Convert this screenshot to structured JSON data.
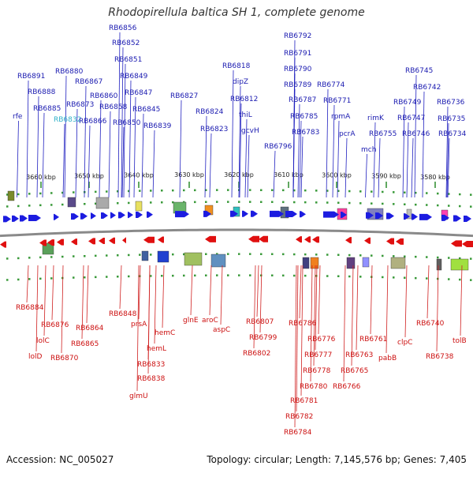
{
  "title": "Rhodopirellula baltica SH 1, complete genome",
  "footer": {
    "accession": "Accession: NC_005027",
    "summary": "Topology: circular; Length: 7,145,576 bp; Genes: 7,405"
  },
  "ticks": [
    "3660 kbp",
    "3650 kbp",
    "3640 kbp",
    "3630 kbp",
    "3620 kbp",
    "3610 kbp",
    "3600 kbp",
    "3590 kbp",
    "3580 kbp"
  ],
  "top_labels": [
    "RB6856",
    "RB6852",
    "RB6851",
    "RB6849",
    "RB6847",
    "RB6845",
    "RB6839",
    "RB6880",
    "RB6867",
    "RB6891",
    "RB6888",
    "RB6873",
    "RB6860",
    "RB6885",
    "rfe",
    "RB6832",
    "RB6866",
    "RB6858",
    "RB6850",
    "RB6827",
    "RB6824",
    "RB6823",
    "RB6818",
    "dipZ",
    "RB6812",
    "thiL",
    "gcvH",
    "RB6792",
    "RB6791",
    "RB6790",
    "RB6789",
    "RB6787",
    "RB6785",
    "RB6783",
    "RB6796",
    "RB6774",
    "RB6771",
    "rpmA",
    "pcrA",
    "rimK",
    "mch",
    "RB6755",
    "RB6745",
    "RB6742",
    "RB6749",
    "RB6747",
    "RB6746",
    "RB6736",
    "RB6735",
    "RB6734"
  ],
  "bottom_labels": [
    "RB6884",
    "RB6876",
    "lolC",
    "lolD",
    "RB6870",
    "RB6864",
    "RB6865",
    "RB6848",
    "prsA",
    "hemC",
    "hemL",
    "RB6833",
    "RB6838",
    "glmU",
    "glnE",
    "aroC",
    "aspC",
    "RB6807",
    "RB6799",
    "RB6802",
    "RB6786",
    "RB6776",
    "RB6777",
    "RB6778",
    "RB6780",
    "RB6781",
    "RB6782",
    "RB6784",
    "RB6761",
    "RB6763",
    "RB6765",
    "RB6766",
    "pabB",
    "clpC",
    "RB6740",
    "RB6738",
    "tolB"
  ]
}
